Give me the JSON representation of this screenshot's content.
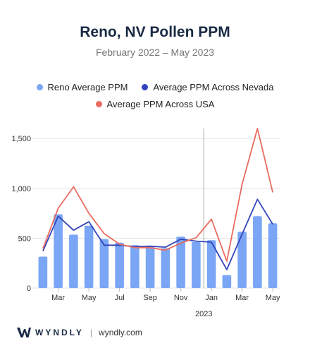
{
  "header": {
    "title": "Reno, NV Pollen PPM",
    "subtitle": "February 2022 – May 2023"
  },
  "colors": {
    "bar": "#7aa6f5",
    "nevada": "#3344bb",
    "usa": "#ea6b61",
    "grid": "#e3e3e3",
    "divider": "#aaaaaa"
  },
  "chart_data": {
    "type": "bar",
    "x": [
      "2022-02",
      "2022-03",
      "2022-04",
      "2022-05",
      "2022-06",
      "2022-07",
      "2022-08",
      "2022-09",
      "2022-10",
      "2022-11",
      "2022-12",
      "2023-01",
      "2023-02",
      "2023-03",
      "2023-04",
      "2023-05"
    ],
    "series": [
      {
        "name": "Reno Average PPM",
        "kind": "bar",
        "color": "#7aa6f5",
        "values": [
          315,
          740,
          535,
          625,
          490,
          455,
          430,
          425,
          400,
          515,
          460,
          480,
          130,
          565,
          720,
          650
        ]
      },
      {
        "name": "Average PPM Across Nevada",
        "kind": "line",
        "color": "#3344bb",
        "values": [
          370,
          720,
          580,
          665,
          430,
          430,
          415,
          420,
          410,
          490,
          470,
          460,
          185,
          540,
          890,
          640
        ]
      },
      {
        "name": "Average PPM Across USA",
        "kind": "line",
        "color": "#ea6b61",
        "values": [
          395,
          800,
          1015,
          750,
          545,
          440,
          405,
          405,
          380,
          450,
          505,
          690,
          270,
          1040,
          1600,
          960
        ]
      }
    ],
    "x_ticks": [
      {
        "index": 1,
        "label": "Mar"
      },
      {
        "index": 3,
        "label": "May"
      },
      {
        "index": 5,
        "label": "Jul"
      },
      {
        "index": 7,
        "label": "Sep"
      },
      {
        "index": 9,
        "label": "Nov"
      },
      {
        "index": 11,
        "label": "Jan"
      },
      {
        "index": 13,
        "label": "Mar"
      },
      {
        "index": 15,
        "label": "May"
      }
    ],
    "year_marker": {
      "label": "2023",
      "between": [
        10,
        11
      ]
    },
    "y_ticks": [
      0,
      500,
      1000,
      1500
    ],
    "y_tick_labels": [
      "0",
      "500",
      "1,000",
      "1,500"
    ],
    "ylim": [
      0,
      1600
    ],
    "grid": true,
    "legend": "top-center"
  },
  "footer": {
    "brand": "WYNDLY",
    "separator": "|",
    "site": "wyndly.com"
  }
}
